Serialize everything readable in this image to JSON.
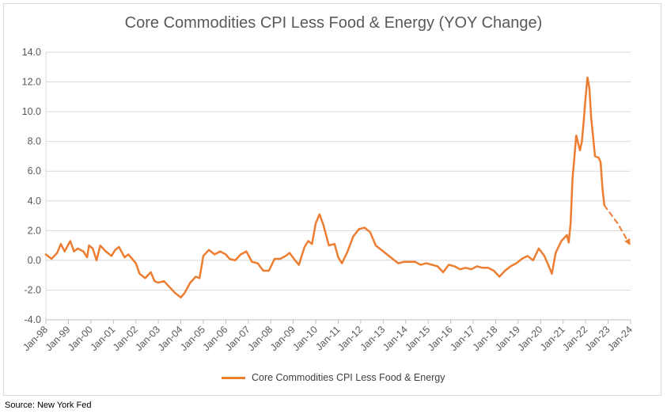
{
  "source_note": "Source: New York Fed",
  "colors": {
    "series": "#ed7d31",
    "axis_text": "#595959",
    "grid": "#d9d9d9"
  },
  "chart_data": {
    "type": "line",
    "title": "Core Commodities CPI Less Food & Energy (YOY Change)",
    "xlabel": "",
    "ylabel": "",
    "ylim": [
      -4,
      14
    ],
    "y_ticks": [
      "-4.0",
      "-2.0",
      "0.0",
      "2.0",
      "4.0",
      "6.0",
      "8.0",
      "10.0",
      "12.0",
      "14.0"
    ],
    "x_ticks": [
      "Jan-98",
      "Jan-99",
      "Jan-00",
      "Jan-01",
      "Jan-02",
      "Jan-03",
      "Jan-04",
      "Jan-05",
      "Jan-06",
      "Jan-07",
      "Jan-08",
      "Jan-09",
      "Jan-10",
      "Jan-11",
      "Jan-12",
      "Jan-13",
      "Jan-14",
      "Jan-15",
      "Jan-16",
      "Jan-17",
      "Jan-18",
      "Jan-19",
      "Jan-20",
      "Jan-21",
      "Jan-22",
      "Jan-23",
      "Jan-24"
    ],
    "grid": "horizontal",
    "legend": "bottom",
    "series": [
      {
        "name": "Core Commodities CPI Less Food & Energy",
        "style": "solid",
        "points": [
          [
            "1998-01",
            0.4
          ],
          [
            "1998-04",
            0.1
          ],
          [
            "1998-07",
            0.5
          ],
          [
            "1998-09",
            1.1
          ],
          [
            "1998-11",
            0.6
          ],
          [
            "1999-02",
            1.3
          ],
          [
            "1999-04",
            0.6
          ],
          [
            "1999-06",
            0.8
          ],
          [
            "1999-09",
            0.6
          ],
          [
            "1999-11",
            0.2
          ],
          [
            "1999-12",
            1.0
          ],
          [
            "2000-02",
            0.8
          ],
          [
            "2000-04",
            0.0
          ],
          [
            "2000-06",
            1.0
          ],
          [
            "2000-09",
            0.6
          ],
          [
            "2000-12",
            0.3
          ],
          [
            "2001-02",
            0.7
          ],
          [
            "2001-04",
            0.9
          ],
          [
            "2001-07",
            0.2
          ],
          [
            "2001-09",
            0.4
          ],
          [
            "2001-11",
            0.1
          ],
          [
            "2002-01",
            -0.2
          ],
          [
            "2002-03",
            -0.9
          ],
          [
            "2002-06",
            -1.2
          ],
          [
            "2002-09",
            -0.8
          ],
          [
            "2002-11",
            -1.4
          ],
          [
            "2003-01",
            -1.5
          ],
          [
            "2003-04",
            -1.4
          ],
          [
            "2003-07",
            -1.8
          ],
          [
            "2003-10",
            -2.2
          ],
          [
            "2004-01",
            -2.5
          ],
          [
            "2004-03",
            -2.2
          ],
          [
            "2004-06",
            -1.5
          ],
          [
            "2004-09",
            -1.1
          ],
          [
            "2004-11",
            -1.2
          ],
          [
            "2005-01",
            0.3
          ],
          [
            "2005-04",
            0.7
          ],
          [
            "2005-07",
            0.4
          ],
          [
            "2005-10",
            0.6
          ],
          [
            "2006-01",
            0.4
          ],
          [
            "2006-03",
            0.1
          ],
          [
            "2006-06",
            0.0
          ],
          [
            "2006-09",
            0.4
          ],
          [
            "2006-12",
            0.6
          ],
          [
            "2007-03",
            -0.1
          ],
          [
            "2007-06",
            -0.2
          ],
          [
            "2007-09",
            -0.7
          ],
          [
            "2007-12",
            -0.7
          ],
          [
            "2008-03",
            0.1
          ],
          [
            "2008-06",
            0.1
          ],
          [
            "2008-09",
            0.3
          ],
          [
            "2008-11",
            0.5
          ],
          [
            "2009-02",
            0.0
          ],
          [
            "2009-04",
            -0.3
          ],
          [
            "2009-07",
            0.9
          ],
          [
            "2009-09",
            1.3
          ],
          [
            "2009-11",
            1.1
          ],
          [
            "2010-01",
            2.5
          ],
          [
            "2010-03",
            3.1
          ],
          [
            "2010-05",
            2.4
          ],
          [
            "2010-08",
            1.0
          ],
          [
            "2010-11",
            1.1
          ],
          [
            "2011-01",
            0.2
          ],
          [
            "2011-03",
            -0.2
          ],
          [
            "2011-06",
            0.6
          ],
          [
            "2011-09",
            1.6
          ],
          [
            "2011-12",
            2.1
          ],
          [
            "2012-03",
            2.2
          ],
          [
            "2012-06",
            1.9
          ],
          [
            "2012-09",
            1.0
          ],
          [
            "2012-12",
            0.7
          ],
          [
            "2013-03",
            0.4
          ],
          [
            "2013-06",
            0.1
          ],
          [
            "2013-09",
            -0.2
          ],
          [
            "2013-12",
            -0.1
          ],
          [
            "2014-03",
            -0.1
          ],
          [
            "2014-06",
            -0.1
          ],
          [
            "2014-09",
            -0.3
          ],
          [
            "2014-12",
            -0.2
          ],
          [
            "2015-03",
            -0.3
          ],
          [
            "2015-06",
            -0.4
          ],
          [
            "2015-09",
            -0.8
          ],
          [
            "2015-12",
            -0.3
          ],
          [
            "2016-03",
            -0.4
          ],
          [
            "2016-06",
            -0.6
          ],
          [
            "2016-09",
            -0.5
          ],
          [
            "2016-12",
            -0.6
          ],
          [
            "2017-03",
            -0.4
          ],
          [
            "2017-06",
            -0.5
          ],
          [
            "2017-09",
            -0.5
          ],
          [
            "2017-12",
            -0.7
          ],
          [
            "2018-03",
            -1.1
          ],
          [
            "2018-06",
            -0.7
          ],
          [
            "2018-09",
            -0.4
          ],
          [
            "2018-12",
            -0.2
          ],
          [
            "2019-03",
            0.1
          ],
          [
            "2019-06",
            0.3
          ],
          [
            "2019-09",
            0.0
          ],
          [
            "2019-12",
            0.8
          ],
          [
            "2020-03",
            0.3
          ],
          [
            "2020-05",
            -0.3
          ],
          [
            "2020-07",
            -0.9
          ],
          [
            "2020-09",
            0.5
          ],
          [
            "2020-12",
            1.3
          ],
          [
            "2021-03",
            1.7
          ],
          [
            "2021-04",
            1.2
          ],
          [
            "2021-05",
            2.5
          ],
          [
            "2021-06",
            5.5
          ],
          [
            "2021-08",
            8.4
          ],
          [
            "2021-10",
            7.4
          ],
          [
            "2021-11",
            8.0
          ],
          [
            "2021-12",
            9.4
          ],
          [
            "2022-01",
            11.0
          ],
          [
            "2022-02",
            12.3
          ],
          [
            "2022-03",
            11.6
          ],
          [
            "2022-04",
            9.5
          ],
          [
            "2022-05",
            8.3
          ],
          [
            "2022-06",
            7.0
          ],
          [
            "2022-08",
            6.9
          ],
          [
            "2022-09",
            6.6
          ],
          [
            "2022-10",
            4.8
          ],
          [
            "2022-11",
            3.7
          ]
        ]
      },
      {
        "name": "",
        "style": "dashed-arrow",
        "points": [
          [
            "2022-11",
            3.7
          ],
          [
            "2023-06",
            2.5
          ],
          [
            "2023-12",
            1.2
          ]
        ]
      }
    ]
  }
}
